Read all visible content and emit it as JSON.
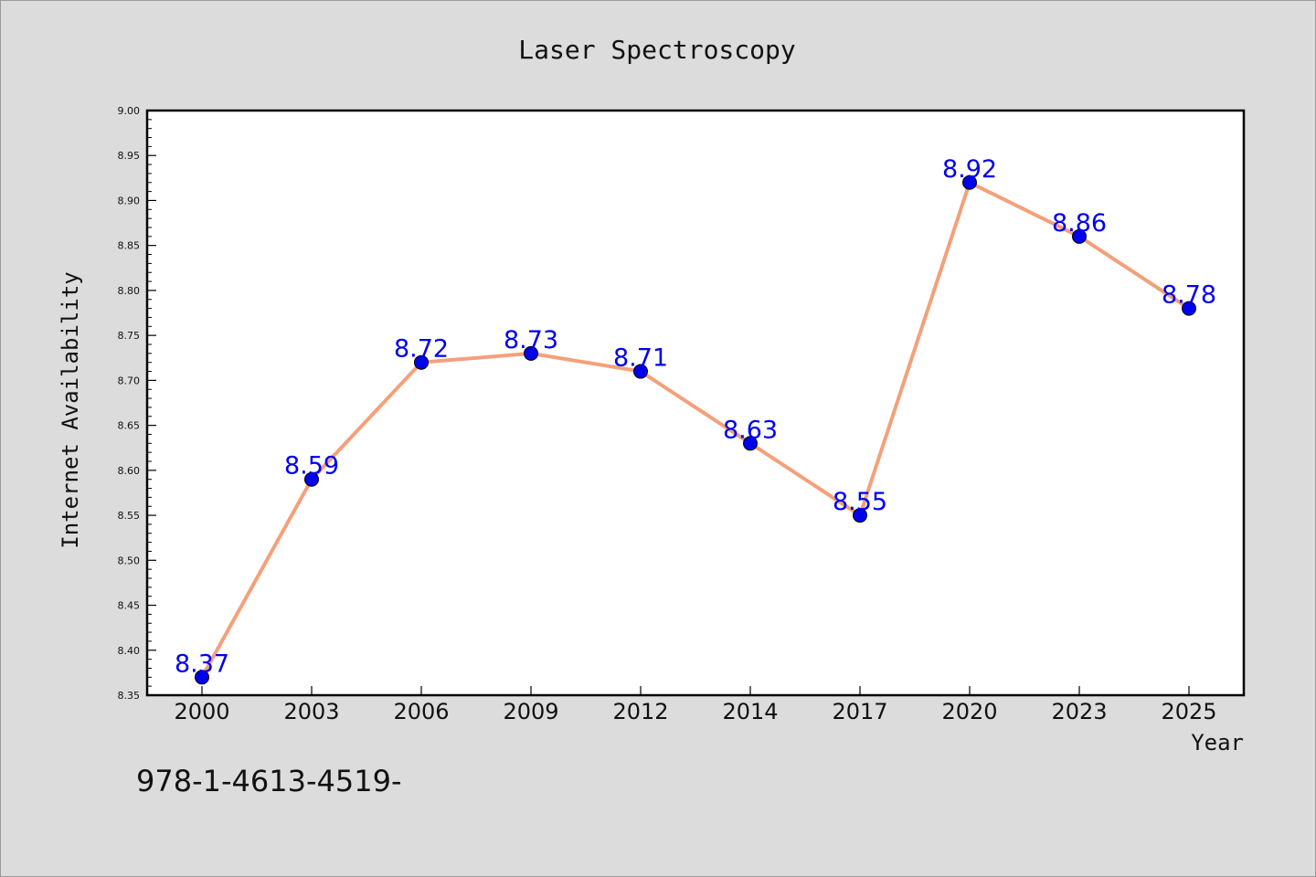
{
  "chart_data": {
    "type": "line",
    "title": "Laser Spectroscopy",
    "xlabel": "Year",
    "ylabel": "Internet Availability",
    "categories": [
      "2000",
      "2003",
      "2006",
      "2009",
      "2012",
      "2014",
      "2017",
      "2020",
      "2023",
      "2025"
    ],
    "series": [
      {
        "values": [
          8.37,
          8.59,
          8.72,
          8.73,
          8.71,
          8.63,
          8.55,
          8.92,
          8.86,
          8.78
        ],
        "data_labels": [
          "8.37",
          "8.59",
          "8.72",
          "8.73",
          "8.71",
          "8.63",
          "8.55",
          "8.92",
          "8.86",
          "8.78"
        ],
        "line_color": "#f4a07a",
        "marker_color": "#0000ee",
        "label_color": "#0000ee"
      }
    ],
    "ylim": [
      8.35,
      9.0
    ],
    "yticks": [
      "8.35",
      "8.40",
      "8.45",
      "8.50",
      "8.55",
      "8.60",
      "8.65",
      "8.70",
      "8.75",
      "8.80",
      "8.85",
      "8.90",
      "8.95",
      "9.00"
    ],
    "grid": false,
    "legend": "none"
  },
  "footer": {
    "code": "978-1-4613-4519-"
  }
}
